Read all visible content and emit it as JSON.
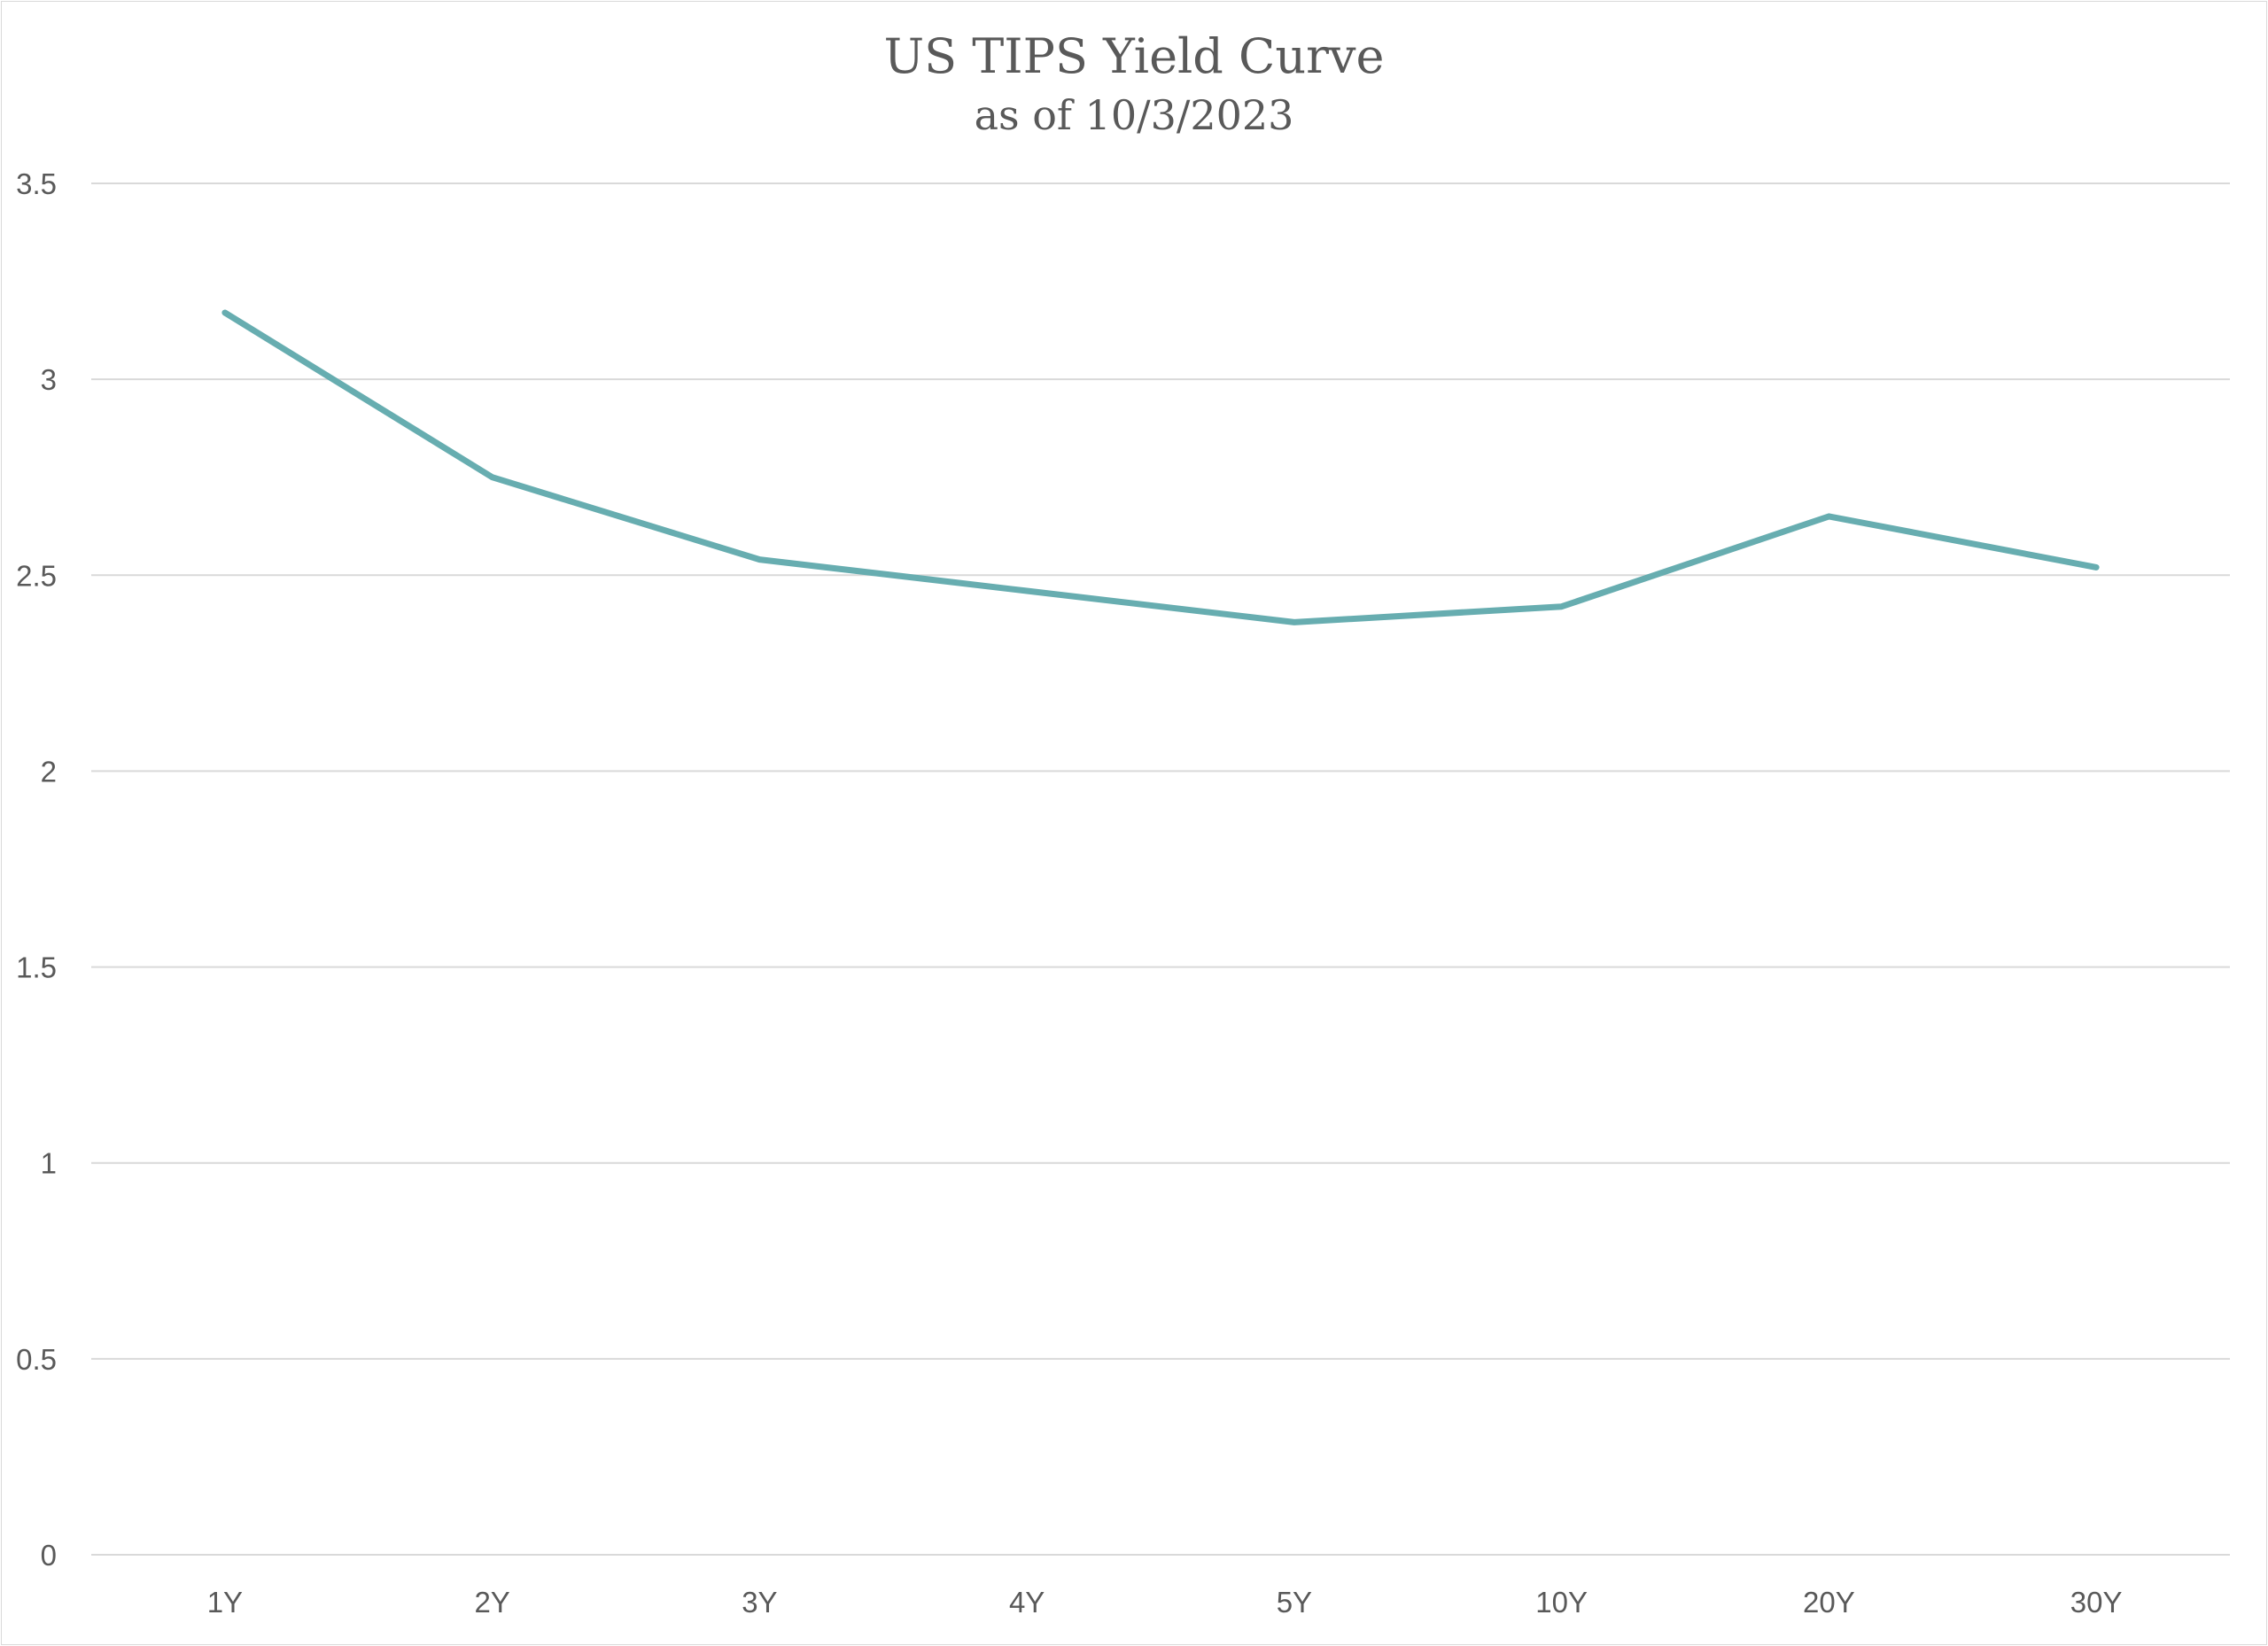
{
  "chart_data": {
    "type": "line",
    "title": "US TIPS Yield Curve",
    "subtitle": "as of 10/3/2023",
    "xlabel": "",
    "ylabel": "",
    "categories": [
      "1Y",
      "2Y",
      "3Y",
      "4Y",
      "5Y",
      "10Y",
      "20Y",
      "30Y"
    ],
    "series": [
      {
        "values": [
          3.17,
          2.75,
          2.54,
          2.46,
          2.38,
          2.42,
          2.65,
          2.52
        ],
        "color": "#67adb0"
      }
    ],
    "ylim": [
      0,
      3.5
    ],
    "yticks": [
      "0",
      "0.5",
      "1",
      "1.5",
      "2",
      "2.5",
      "3",
      "3.5"
    ],
    "grid": true,
    "legend": "none"
  }
}
